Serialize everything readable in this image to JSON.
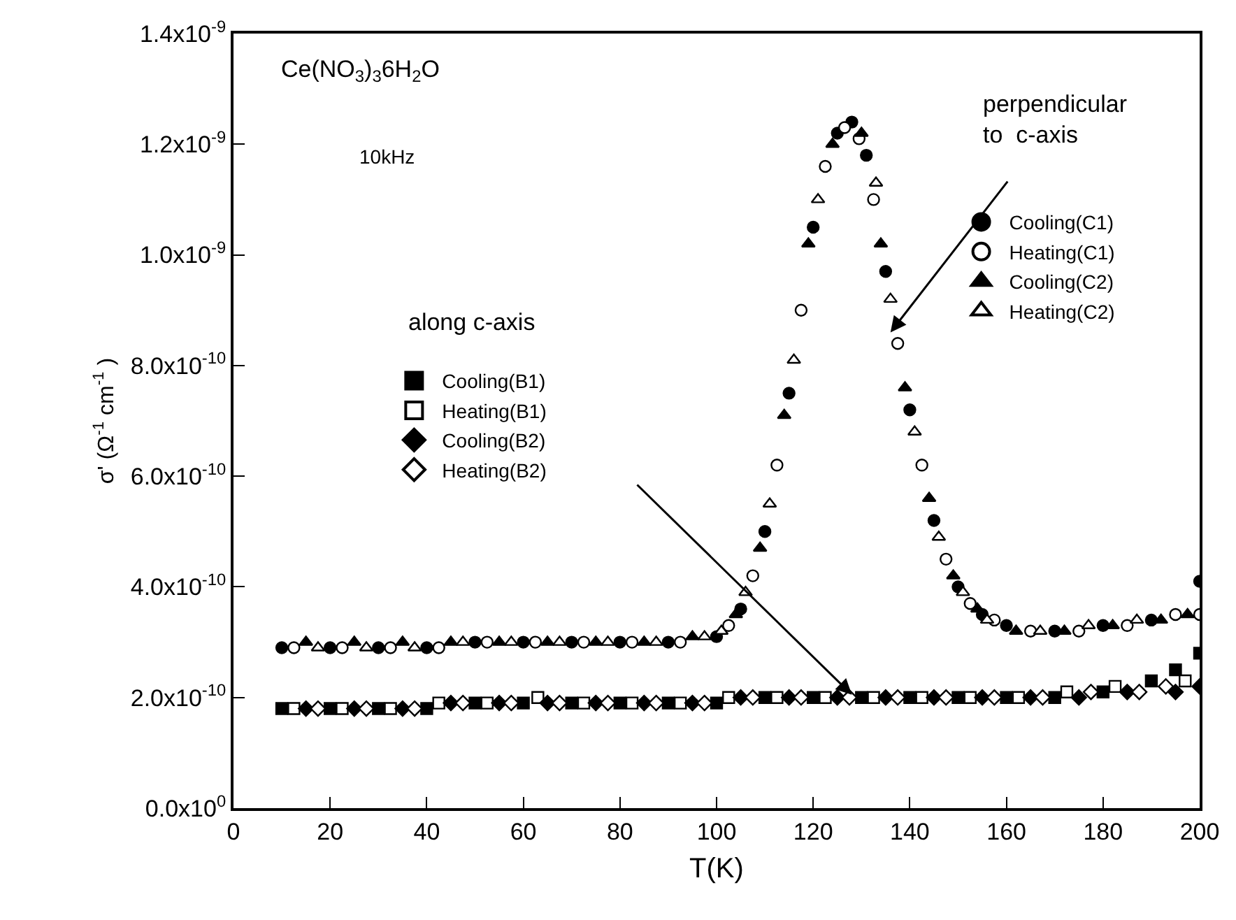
{
  "chart_data": {
    "type": "scatter",
    "xlabel": "T(K)",
    "ylabel": "σ' (Ω$^{-1}$ cm$^{-1}$ )",
    "annotations": [
      "Ce(NO$_{3}$)$_{3}$6H$_{2}$O",
      "10kHz",
      {
        "text": "perpendicular\nto  c-axis",
        "x": 136,
        "y": 8.6e-10
      },
      {
        "text": "along c-axis",
        "x": 128,
        "y": 2.05e-10
      }
    ],
    "xlim": [
      0,
      200
    ],
    "xticks": [
      0,
      20,
      40,
      60,
      80,
      100,
      120,
      140,
      160,
      180,
      200
    ],
    "ylim": [
      0,
      1.4e-09
    ],
    "yticks": [
      {
        "value": 0,
        "label": "0.0x10$^{0}$"
      },
      {
        "value": 2e-10,
        "label": "2.0x10$^{-10}$"
      },
      {
        "value": 4e-10,
        "label": "4.0x10$^{-10}$"
      },
      {
        "value": 6e-10,
        "label": "6.0x10$^{-10}$"
      },
      {
        "value": 8e-10,
        "label": "8.0x10$^{-10}$"
      },
      {
        "value": 1e-09,
        "label": "1.0x10$^{-9}$"
      },
      {
        "value": 1.2e-09,
        "label": "1.2x10$^{-9}$"
      },
      {
        "value": 1.4e-09,
        "label": "1.4x10$^{-9}$"
      }
    ],
    "legend": "top right",
    "series": [
      {
        "name": "Cooling(C1)",
        "color": "#000000",
        "marker": "circle",
        "x": [
          10,
          20,
          30,
          40,
          50,
          60,
          70,
          80,
          90,
          100,
          105,
          110,
          115,
          120,
          125,
          128,
          131,
          135,
          140,
          145,
          150,
          155,
          160,
          170,
          180,
          190,
          200
        ],
        "values": [
          2.9e-10,
          2.9e-10,
          2.9e-10,
          2.9e-10,
          3e-10,
          3e-10,
          3e-10,
          3e-10,
          3e-10,
          3.1e-10,
          3.6e-10,
          5e-10,
          7.5e-10,
          1.05e-09,
          1.22e-09,
          1.24e-09,
          1.18e-09,
          9.7e-10,
          7.2e-10,
          5.2e-10,
          4e-10,
          3.5e-10,
          3.3e-10,
          3.2e-10,
          3.3e-10,
          3.4e-10,
          4.1e-10
        ]
      },
      {
        "name": "Heating(C1)",
        "color": "#ffffff",
        "marker": "circle",
        "x": [
          12.5,
          22.5,
          32.5,
          42.5,
          52.5,
          62.5,
          72.5,
          82.5,
          92.5,
          102.5,
          107.5,
          112.5,
          117.5,
          122.5,
          126.5,
          129.5,
          132.5,
          137.5,
          142.5,
          147.5,
          152.5,
          157.5,
          165,
          175,
          185,
          195,
          200
        ],
        "values": [
          2.9e-10,
          2.9e-10,
          2.9e-10,
          2.9e-10,
          3e-10,
          3e-10,
          3e-10,
          3e-10,
          3e-10,
          3.3e-10,
          4.2e-10,
          6.2e-10,
          9e-10,
          1.16e-09,
          1.23e-09,
          1.21e-09,
          1.1e-09,
          8.4e-10,
          6.2e-10,
          4.5e-10,
          3.7e-10,
          3.4e-10,
          3.2e-10,
          3.2e-10,
          3.3e-10,
          3.5e-10,
          3.5e-10
        ]
      },
      {
        "name": "Cooling(C2)",
        "color": "#000000",
        "marker": "triangle",
        "x": [
          15,
          25,
          35,
          45,
          55,
          65,
          75,
          85,
          95,
          104,
          109,
          114,
          119,
          124,
          130,
          134,
          139,
          144,
          149,
          154,
          162,
          172,
          182,
          192,
          197.5
        ],
        "values": [
          3e-10,
          3e-10,
          3e-10,
          3e-10,
          3e-10,
          3e-10,
          3e-10,
          3e-10,
          3.1e-10,
          3.5e-10,
          4.7e-10,
          7.1e-10,
          1.02e-09,
          1.2e-09,
          1.22e-09,
          1.02e-09,
          7.6e-10,
          5.6e-10,
          4.2e-10,
          3.6e-10,
          3.2e-10,
          3.2e-10,
          3.3e-10,
          3.4e-10,
          3.5e-10
        ]
      },
      {
        "name": "Heating(C2)",
        "color": "#ffffff",
        "marker": "triangle",
        "x": [
          17.5,
          27.5,
          37.5,
          47.5,
          57.5,
          67.5,
          77.5,
          87.5,
          97.5,
          101,
          106,
          111,
          116,
          121,
          133,
          136,
          141,
          146,
          151,
          156,
          167,
          177,
          187
        ],
        "values": [
          2.9e-10,
          2.9e-10,
          2.9e-10,
          3e-10,
          3e-10,
          3e-10,
          3e-10,
          3e-10,
          3.1e-10,
          3.2e-10,
          3.9e-10,
          5.5e-10,
          8.1e-10,
          1.1e-09,
          1.13e-09,
          9.2e-10,
          6.8e-10,
          4.9e-10,
          3.9e-10,
          3.4e-10,
          3.2e-10,
          3.3e-10,
          3.4e-10
        ]
      },
      {
        "name": "Cooling(B1)",
        "color": "#000000",
        "marker": "square",
        "x": [
          10,
          20,
          30,
          40,
          50,
          60,
          70,
          80,
          90,
          100,
          110,
          120,
          130,
          140,
          150,
          160,
          170,
          180,
          190,
          195,
          200
        ],
        "values": [
          1.8e-10,
          1.8e-10,
          1.8e-10,
          1.8e-10,
          1.9e-10,
          1.9e-10,
          1.9e-10,
          1.9e-10,
          1.9e-10,
          1.9e-10,
          2e-10,
          2e-10,
          2e-10,
          2e-10,
          2e-10,
          2e-10,
          2e-10,
          2.1e-10,
          2.3e-10,
          2.5e-10,
          2.8e-10
        ]
      },
      {
        "name": "Heating(B1)",
        "color": "#ffffff",
        "marker": "square",
        "x": [
          12.5,
          22.5,
          32.5,
          42.5,
          52.5,
          63,
          72.5,
          82.5,
          92.5,
          102.5,
          112.5,
          122.5,
          132.5,
          142.5,
          152.5,
          162.5,
          172.5,
          182.5,
          197
        ],
        "values": [
          1.8e-10,
          1.8e-10,
          1.8e-10,
          1.9e-10,
          1.9e-10,
          2e-10,
          1.9e-10,
          1.9e-10,
          1.9e-10,
          2e-10,
          2e-10,
          2e-10,
          2e-10,
          2e-10,
          2e-10,
          2e-10,
          2.1e-10,
          2.2e-10,
          2.3e-10
        ]
      },
      {
        "name": "Cooling(B2)",
        "color": "#000000",
        "marker": "diamond",
        "x": [
          15,
          25,
          35,
          45,
          55,
          65,
          75,
          85,
          95,
          105,
          115,
          125,
          135,
          145,
          155,
          165,
          175,
          185,
          195,
          200
        ],
        "values": [
          1.8e-10,
          1.8e-10,
          1.8e-10,
          1.9e-10,
          1.9e-10,
          1.9e-10,
          1.9e-10,
          1.9e-10,
          1.9e-10,
          2e-10,
          2e-10,
          2e-10,
          2e-10,
          2e-10,
          2e-10,
          2e-10,
          2e-10,
          2.1e-10,
          2.1e-10,
          2.2e-10
        ]
      },
      {
        "name": "Heating(B2)",
        "color": "#ffffff",
        "marker": "diamond",
        "x": [
          17.5,
          27.5,
          37.5,
          47.5,
          57.5,
          67.5,
          77.5,
          87.5,
          97.5,
          107.5,
          117.5,
          127.5,
          137.5,
          147.5,
          157.5,
          167.5,
          177.5,
          187.5,
          193
        ],
        "values": [
          1.8e-10,
          1.8e-10,
          1.8e-10,
          1.9e-10,
          1.9e-10,
          1.9e-10,
          1.9e-10,
          1.9e-10,
          1.9e-10,
          2e-10,
          2e-10,
          2e-10,
          2e-10,
          2e-10,
          2e-10,
          2e-10,
          2.1e-10,
          2.1e-10,
          2.2e-10
        ]
      }
    ]
  }
}
